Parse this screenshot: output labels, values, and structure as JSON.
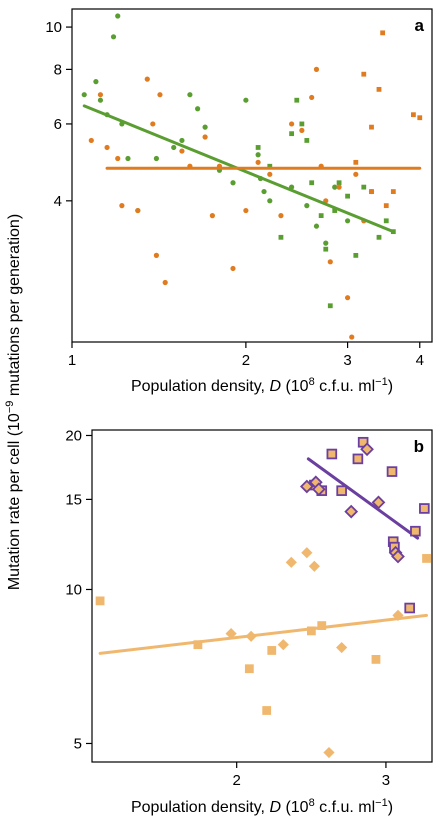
{
  "figure": {
    "ylabel_shared": "Mutation rate per cell  (10⁻⁹ mutations per generation)"
  },
  "chart_data": [
    {
      "panel": "a",
      "type": "scatter",
      "xscale": "log",
      "yscale": "log",
      "xlim": [
        1.0,
        4.2
      ],
      "ylim": [
        1.9,
        11.0
      ],
      "xticks": [
        1,
        2,
        3,
        4
      ],
      "yticks": [
        4,
        6,
        8,
        10
      ],
      "xlabel": "Population density, D (10⁸ c.f.u. ml⁻¹)",
      "grid": false,
      "colors": {
        "green": "#5a9e32",
        "orange": "#e07b1f"
      },
      "series": [
        {
          "marker": "circle",
          "color": "green",
          "points": [
            [
              1.05,
              7.0
            ],
            [
              1.1,
              7.5
            ],
            [
              1.12,
              6.8
            ],
            [
              1.15,
              6.3
            ],
            [
              1.18,
              9.5
            ],
            [
              1.2,
              10.6
            ],
            [
              1.22,
              6.0
            ],
            [
              1.25,
              5.0
            ],
            [
              1.3,
              3.8
            ],
            [
              1.4,
              5.0
            ],
            [
              1.5,
              5.3
            ],
            [
              1.55,
              5.5
            ],
            [
              1.6,
              7.0
            ],
            [
              1.65,
              6.5
            ],
            [
              1.7,
              5.9
            ],
            [
              1.8,
              4.7
            ],
            [
              1.9,
              4.4
            ],
            [
              2.0,
              6.8
            ],
            [
              2.1,
              5.1
            ],
            [
              2.12,
              4.5
            ],
            [
              2.15,
              4.2
            ],
            [
              2.2,
              4.0
            ],
            [
              2.4,
              4.3
            ],
            [
              2.55,
              3.9
            ],
            [
              2.65,
              3.5
            ],
            [
              2.75,
              3.2
            ],
            [
              2.85,
              4.3
            ],
            [
              3.0,
              3.6
            ]
          ]
        },
        {
          "marker": "square",
          "color": "green",
          "points": [
            [
              2.1,
              5.3
            ],
            [
              2.2,
              4.8
            ],
            [
              2.3,
              3.3
            ],
            [
              2.4,
              5.7
            ],
            [
              2.45,
              6.8
            ],
            [
              2.5,
              6.0
            ],
            [
              2.55,
              5.5
            ],
            [
              2.6,
              4.4
            ],
            [
              2.7,
              3.7
            ],
            [
              2.75,
              3.1
            ],
            [
              2.8,
              2.3
            ],
            [
              2.85,
              3.8
            ],
            [
              2.9,
              4.4
            ],
            [
              3.0,
              4.1
            ],
            [
              3.1,
              3.0
            ],
            [
              3.2,
              4.3
            ],
            [
              3.3,
              4.2
            ],
            [
              3.4,
              3.3
            ],
            [
              3.5,
              3.6
            ],
            [
              3.6,
              3.4
            ]
          ]
        },
        {
          "marker": "circle",
          "color": "orange",
          "points": [
            [
              1.08,
              5.5
            ],
            [
              1.12,
              7.0
            ],
            [
              1.15,
              5.3
            ],
            [
              1.2,
              5.0
            ],
            [
              1.22,
              3.9
            ],
            [
              1.3,
              3.8
            ],
            [
              1.35,
              7.6
            ],
            [
              1.38,
              6.0
            ],
            [
              1.4,
              3.0
            ],
            [
              1.42,
              7.0
            ],
            [
              1.45,
              2.6
            ],
            [
              1.55,
              5.2
            ],
            [
              1.6,
              4.8
            ],
            [
              1.7,
              5.6
            ],
            [
              1.75,
              3.7
            ],
            [
              1.8,
              4.8
            ],
            [
              1.9,
              2.8
            ],
            [
              2.0,
              3.8
            ],
            [
              2.1,
              4.9
            ],
            [
              2.2,
              4.6
            ],
            [
              2.3,
              3.7
            ],
            [
              2.4,
              6.0
            ],
            [
              2.5,
              5.8
            ],
            [
              2.6,
              6.9
            ],
            [
              2.65,
              8.0
            ],
            [
              2.7,
              4.8
            ],
            [
              2.75,
              4.0
            ],
            [
              2.8,
              2.9
            ],
            [
              2.9,
              4.3
            ],
            [
              3.0,
              2.4
            ],
            [
              3.05,
              1.95
            ],
            [
              3.1,
              4.6
            ],
            [
              3.2,
              3.6
            ],
            [
              3.3,
              4.2
            ]
          ]
        },
        {
          "marker": "square",
          "color": "orange",
          "points": [
            [
              3.1,
              4.9
            ],
            [
              3.2,
              7.8
            ],
            [
              3.3,
              5.9
            ],
            [
              3.4,
              7.2
            ],
            [
              3.45,
              9.7
            ],
            [
              3.5,
              3.9
            ],
            [
              3.6,
              4.2
            ],
            [
              3.9,
              6.3
            ],
            [
              4.0,
              6.2
            ]
          ]
        }
      ],
      "fits": [
        {
          "color": "green",
          "from": [
            1.05,
            6.6
          ],
          "to": [
            3.6,
            3.4
          ]
        },
        {
          "color": "orange",
          "from": [
            1.15,
            4.75
          ],
          "to": [
            4.0,
            4.75
          ]
        }
      ]
    },
    {
      "panel": "b",
      "type": "scatter",
      "xscale": "log",
      "yscale": "log",
      "xlim": [
        1.35,
        3.4
      ],
      "ylim": [
        4.6,
        20.5
      ],
      "xticks": [
        2,
        3
      ],
      "yticks": [
        5,
        10,
        15,
        20
      ],
      "xlabel": "Population density, D (10⁸ c.f.u. ml⁻¹)",
      "grid": false,
      "colors": {
        "tan": "#f0b86e",
        "purple": "#6b3fa0"
      },
      "series": [
        {
          "marker": "square",
          "color": "tan",
          "points": [
            [
              1.38,
              9.5
            ],
            [
              1.8,
              7.8
            ],
            [
              2.07,
              7.0
            ],
            [
              2.17,
              5.8
            ],
            [
              2.2,
              7.6
            ],
            [
              2.45,
              8.3
            ],
            [
              2.52,
              8.5
            ],
            [
              2.92,
              7.3
            ],
            [
              3.35,
              11.5
            ]
          ]
        },
        {
          "marker": "diamond",
          "color": "tan",
          "points": [
            [
              1.97,
              8.2
            ],
            [
              2.08,
              8.1
            ],
            [
              2.27,
              7.8
            ],
            [
              2.32,
              11.3
            ],
            [
              2.42,
              11.8
            ],
            [
              2.47,
              11.1
            ],
            [
              2.57,
              4.8
            ],
            [
              2.66,
              7.7
            ],
            [
              3.1,
              8.9
            ]
          ]
        },
        {
          "marker": "square",
          "color": "tan",
          "edge": "purple",
          "points": [
            [
              2.47,
              16.0
            ],
            [
              2.52,
              15.6
            ],
            [
              2.59,
              18.4
            ],
            [
              2.66,
              15.6
            ],
            [
              2.78,
              18.0
            ],
            [
              2.82,
              19.4
            ],
            [
              3.05,
              17.0
            ],
            [
              3.06,
              12.4
            ],
            [
              3.07,
              12.1
            ],
            [
              3.2,
              9.2
            ],
            [
              3.25,
              13.0
            ],
            [
              3.33,
              14.4
            ]
          ]
        },
        {
          "marker": "diamond",
          "color": "tan",
          "edge": "purple",
          "points": [
            [
              2.42,
              15.9
            ],
            [
              2.48,
              16.2
            ],
            [
              2.5,
              15.7
            ],
            [
              2.73,
              14.2
            ],
            [
              2.85,
              18.8
            ],
            [
              2.94,
              14.8
            ],
            [
              3.08,
              11.8
            ],
            [
              3.1,
              11.6
            ]
          ]
        }
      ],
      "fits": [
        {
          "color": "tan",
          "from": [
            1.38,
            7.5
          ],
          "to": [
            3.35,
            8.9
          ]
        },
        {
          "color": "purple",
          "from": [
            2.43,
            18.0
          ],
          "to": [
            3.27,
            12.6
          ]
        }
      ]
    }
  ],
  "panels_labels": {
    "a": "a",
    "b": "b"
  },
  "xlabel_parts": {
    "prefix": "Population density, ",
    "var": "D",
    "mid": " (10",
    "exp": "8",
    "unit": " c.f.u. ml",
    "exp2": "−1",
    "suffix": ")"
  },
  "ylabel_parts": {
    "prefix": "Mutation rate per cell  (10",
    "exp": "−9",
    "suffix": " mutations per generation)"
  }
}
